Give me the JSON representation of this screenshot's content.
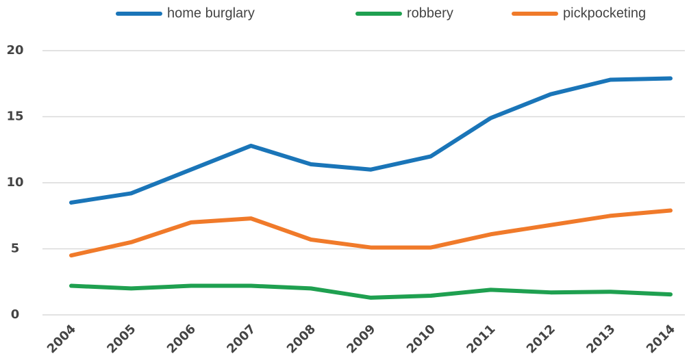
{
  "chart_data": {
    "type": "line",
    "categories": [
      "2004",
      "2005",
      "2006",
      "2007",
      "2008",
      "2009",
      "2010",
      "2011",
      "2012",
      "2013",
      "2014"
    ],
    "series": [
      {
        "name": "home burglary",
        "color": "#1a75b8",
        "values": [
          8.5,
          9.2,
          11.0,
          12.8,
          11.4,
          11.0,
          12.0,
          14.9,
          16.7,
          17.8,
          17.9
        ]
      },
      {
        "name": "robbery",
        "color": "#1fa050",
        "values": [
          2.2,
          2.0,
          2.2,
          2.2,
          2.0,
          1.3,
          1.45,
          1.9,
          1.7,
          1.75,
          1.55
        ]
      },
      {
        "name": "pickpocketing",
        "color": "#f07a2a",
        "values": [
          4.5,
          5.5,
          7.0,
          7.3,
          5.7,
          5.1,
          5.1,
          6.1,
          6.8,
          7.5,
          7.9
        ]
      }
    ],
    "ylim": [
      0,
      20
    ],
    "yticks": [
      0,
      5,
      10,
      15,
      20
    ],
    "grid": true
  }
}
